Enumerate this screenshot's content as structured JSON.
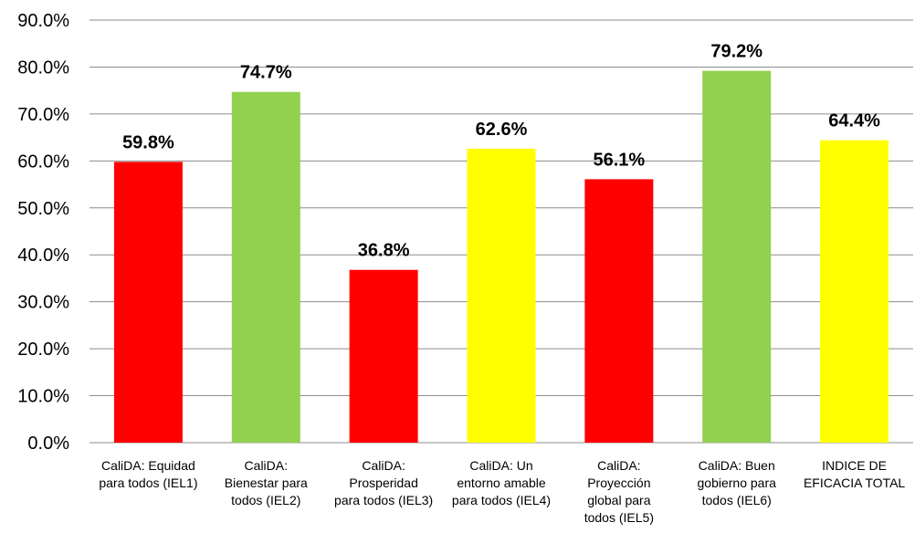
{
  "chart_data": {
    "type": "bar",
    "title": "",
    "xlabel": "",
    "ylabel": "",
    "ylim": [
      0,
      90
    ],
    "y_ticks": [
      "0.0%",
      "10.0%",
      "20.0%",
      "30.0%",
      "40.0%",
      "50.0%",
      "60.0%",
      "70.0%",
      "80.0%",
      "90.0%"
    ],
    "grid": true,
    "legend": "none",
    "categories": [
      [
        "CaliDA: Equidad",
        "para todos (IEL1)"
      ],
      [
        "CaliDA:",
        "Bienestar para",
        "todos (IEL2)"
      ],
      [
        "CaliDA:",
        "Prosperidad",
        "para todos (IEL3)"
      ],
      [
        "CaliDA: Un",
        "entorno amable",
        "para todos (IEL4)"
      ],
      [
        "CaliDA:",
        "Proyección",
        "global para",
        "todos (IEL5)"
      ],
      [
        "CaliDA: Buen",
        "gobierno para",
        "todos (IEL6)"
      ],
      [
        "INDICE DE",
        "EFICACIA TOTAL"
      ]
    ],
    "values": [
      59.8,
      74.7,
      36.8,
      62.6,
      56.1,
      79.2,
      64.4
    ],
    "data_labels": [
      "59.8%",
      "74.7%",
      "36.8%",
      "62.6%",
      "56.1%",
      "79.2%",
      "64.4%"
    ],
    "bar_colors": [
      "#ff0000",
      "#92d050",
      "#ff0000",
      "#ffff00",
      "#ff0000",
      "#92d050",
      "#ffff00"
    ]
  }
}
